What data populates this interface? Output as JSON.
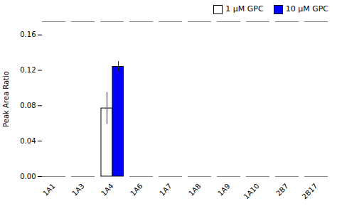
{
  "chart_data": {
    "type": "bar",
    "categories": [
      "1A1",
      "1A3",
      "1A4",
      "1A6",
      "1A7",
      "1A8",
      "1A9",
      "1A10",
      "2B7",
      "2B17"
    ],
    "series": [
      {
        "name": "1 μM GPC",
        "color": "#ffffff",
        "values": [
          0.0,
          0.0,
          0.077,
          0.0,
          0.0,
          0.0,
          0.0,
          0.0,
          0.0,
          0.0
        ],
        "errors": [
          0.0,
          0.0,
          0.018,
          0.0,
          0.0,
          0.0,
          0.0,
          0.0,
          0.0,
          0.0
        ]
      },
      {
        "name": "10 μM GPC",
        "color": "#0000ff",
        "values": [
          0.0,
          0.0,
          0.124,
          0.0,
          0.0,
          0.0,
          0.0,
          0.0,
          0.0,
          0.0
        ],
        "errors": [
          0.0,
          0.0,
          0.006,
          0.0,
          0.0,
          0.0,
          0.0,
          0.0,
          0.0,
          0.0
        ]
      }
    ],
    "ylabel": "Peak Area Ratio",
    "ylim": [
      0.0,
      0.175
    ],
    "yticks": [
      {
        "value": 0.0,
        "label": "0.00"
      },
      {
        "value": 0.04,
        "label": "0.04"
      },
      {
        "value": 0.08,
        "label": "0.08"
      },
      {
        "value": 0.12,
        "label": "0.12"
      },
      {
        "value": 0.16,
        "label": "0.16"
      }
    ],
    "legend": "upper right",
    "grid": false
  }
}
